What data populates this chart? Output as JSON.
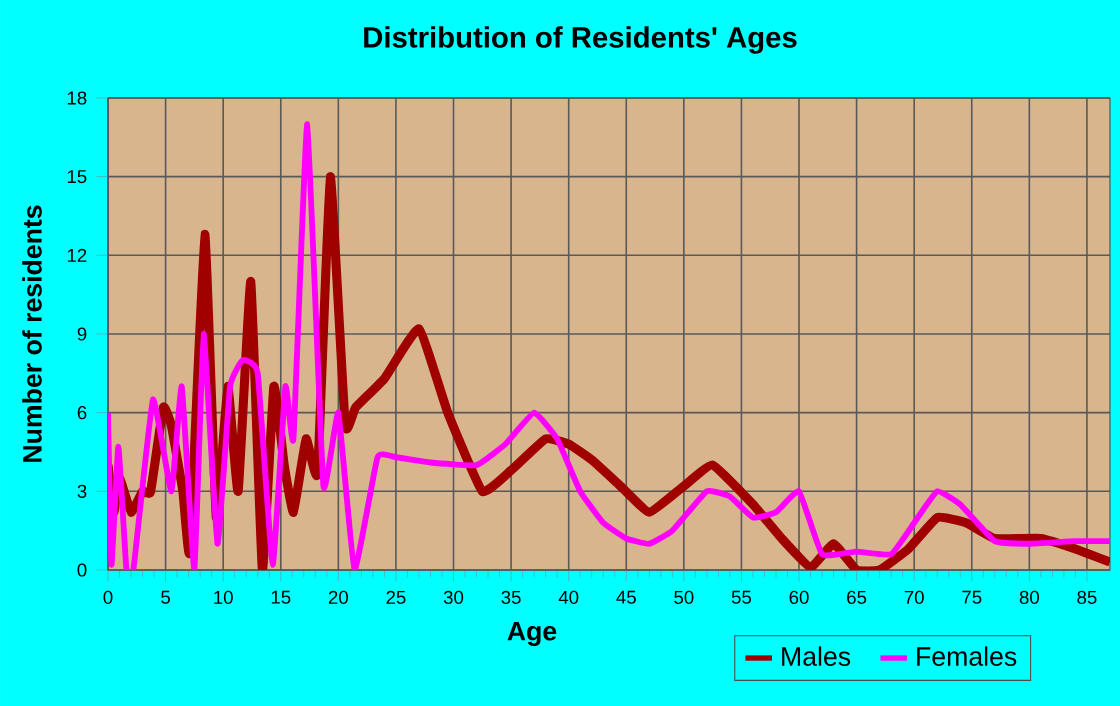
{
  "chart_data": {
    "type": "line",
    "title": "Distribution of Residents' Ages",
    "xlabel": "Age",
    "ylabel": "Number of residents",
    "xlim": [
      0,
      87
    ],
    "ylim": [
      0,
      18
    ],
    "xticks": [
      0,
      5,
      10,
      15,
      20,
      25,
      30,
      35,
      40,
      45,
      50,
      55,
      60,
      65,
      70,
      75,
      80,
      85
    ],
    "yticks": [
      0,
      3,
      6,
      9,
      12,
      15,
      18
    ],
    "grid": true,
    "legend": "bottom right",
    "marker": "none",
    "line_style": "solid",
    "series": [
      {
        "name": "Males",
        "color": "#a00000",
        "x": [
          0,
          0.5,
          1,
          2,
          3,
          3.7,
          4.8,
          5.5,
          6.5,
          7.1,
          8.4,
          9.4,
          10.4,
          11.3,
          12.4,
          13.4,
          14.4,
          15.3,
          16.1,
          17.2,
          18.2,
          19.3,
          20.6,
          21.5,
          24,
          27,
          29.5,
          32.5,
          35,
          38,
          40,
          42,
          44.5,
          47,
          50,
          52.5,
          56,
          58.5,
          61,
          63,
          65,
          67,
          69.5,
          72,
          74.5,
          77,
          81,
          84,
          87
        ],
        "values": [
          4,
          2.2,
          3.5,
          2.2,
          3,
          3,
          6.2,
          5.5,
          3,
          0.7,
          12.8,
          2,
          7,
          3,
          11,
          0,
          7,
          4,
          2.2,
          5,
          3.7,
          15,
          5.5,
          6.2,
          7.3,
          9.2,
          6,
          3,
          3.8,
          5,
          4.8,
          4.2,
          3.2,
          2.2,
          3.2,
          4,
          2.5,
          1.2,
          0.1,
          1,
          0,
          0,
          0.8,
          2,
          1.8,
          1.2,
          1.2,
          0.8,
          0.3
        ]
      },
      {
        "name": "Females",
        "color": "#ff00ff",
        "x": [
          0,
          0.3,
          0.9,
          1.6,
          2.2,
          3.9,
          5.5,
          6.4,
          7.5,
          8.3,
          9.5,
          10.6,
          11.7,
          13,
          14.3,
          15.4,
          16.1,
          17.3,
          18.7,
          20,
          21.4,
          23.4,
          25,
          28,
          32,
          34.5,
          37,
          39,
          41,
          43,
          45,
          47,
          49,
          52,
          54,
          56,
          58,
          60,
          62,
          65,
          68,
          70,
          72,
          74,
          77,
          80,
          84,
          87
        ],
        "values": [
          6,
          0.2,
          4.7,
          0,
          0,
          6.5,
          3,
          7,
          0,
          9,
          1,
          7,
          8,
          7.5,
          0.2,
          7,
          5,
          17,
          3.2,
          6,
          0,
          4.3,
          4.3,
          4.1,
          4,
          4.8,
          6,
          5,
          3,
          1.8,
          1.2,
          1,
          1.5,
          3,
          2.8,
          2,
          2.2,
          3,
          0.6,
          0.7,
          0.6,
          1.8,
          3,
          2.5,
          1.1,
          1,
          1.1,
          1.1
        ]
      }
    ]
  }
}
